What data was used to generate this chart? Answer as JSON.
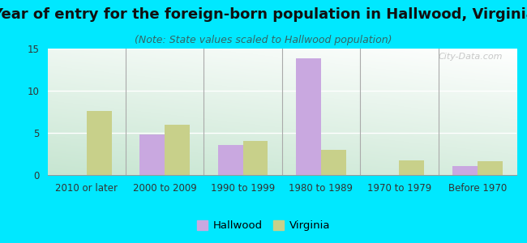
{
  "title": "Year of entry for the foreign-born population in Hallwood, Virginia",
  "subtitle": "(Note: State values scaled to Hallwood population)",
  "categories": [
    "2010 or later",
    "2000 to 2009",
    "1990 to 1999",
    "1980 to 1989",
    "1970 to 1979",
    "Before 1970"
  ],
  "hallwood": [
    0,
    4.8,
    3.6,
    13.8,
    0,
    1.1
  ],
  "virginia": [
    7.6,
    6.0,
    4.0,
    3.0,
    1.7,
    1.6
  ],
  "hallwood_color": "#c9a8e0",
  "virginia_color": "#c8d08a",
  "bg_outer": "#00e8ff",
  "ylim": [
    0,
    15
  ],
  "yticks": [
    0,
    5,
    10,
    15
  ],
  "bar_width": 0.32,
  "title_fontsize": 13,
  "subtitle_fontsize": 9,
  "axis_label_fontsize": 8.5,
  "legend_fontsize": 9.5,
  "watermark_text": "City-Data.com",
  "bg_colors": [
    "#c8e6c0",
    "#e8f5e0",
    "#f5fbf0",
    "#f8fef8",
    "#ffffff"
  ],
  "grid_color": "#d0d0d0"
}
